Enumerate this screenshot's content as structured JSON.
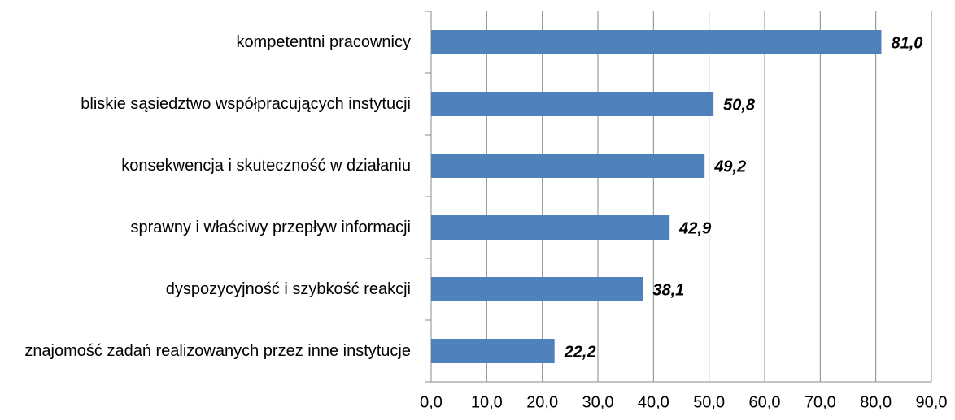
{
  "chart_data": {
    "type": "barh",
    "categories": [
      "kompetentni pracownicy",
      "bliskie sąsiedztwo współpracujących instytucji",
      "konsekwencja i skuteczność w działaniu",
      "sprawny i właściwy przepływ informacji",
      "dyspozycyjność i szybkość reakcji",
      "znajomość zadań realizowanych przez inne instytucje"
    ],
    "values": [
      81.0,
      50.8,
      49.2,
      42.9,
      38.1,
      22.2
    ],
    "value_labels": [
      "81,0",
      "50,8",
      "49,2",
      "42,9",
      "38,1",
      "22,2"
    ],
    "color": "#4f81bd",
    "xlim": [
      0,
      90
    ],
    "xticks": [
      {
        "value": 0,
        "label": "0,0"
      },
      {
        "value": 10,
        "label": "10,0"
      },
      {
        "value": 20,
        "label": "20,0"
      },
      {
        "value": 30,
        "label": "30,0"
      },
      {
        "value": 40,
        "label": "40,0"
      },
      {
        "value": 50,
        "label": "50,0"
      },
      {
        "value": 60,
        "label": "60,0"
      },
      {
        "value": 70,
        "label": "70,0"
      },
      {
        "value": 80,
        "label": "80,0"
      },
      {
        "value": 90,
        "label": "90,0"
      }
    ],
    "grid": true
  }
}
